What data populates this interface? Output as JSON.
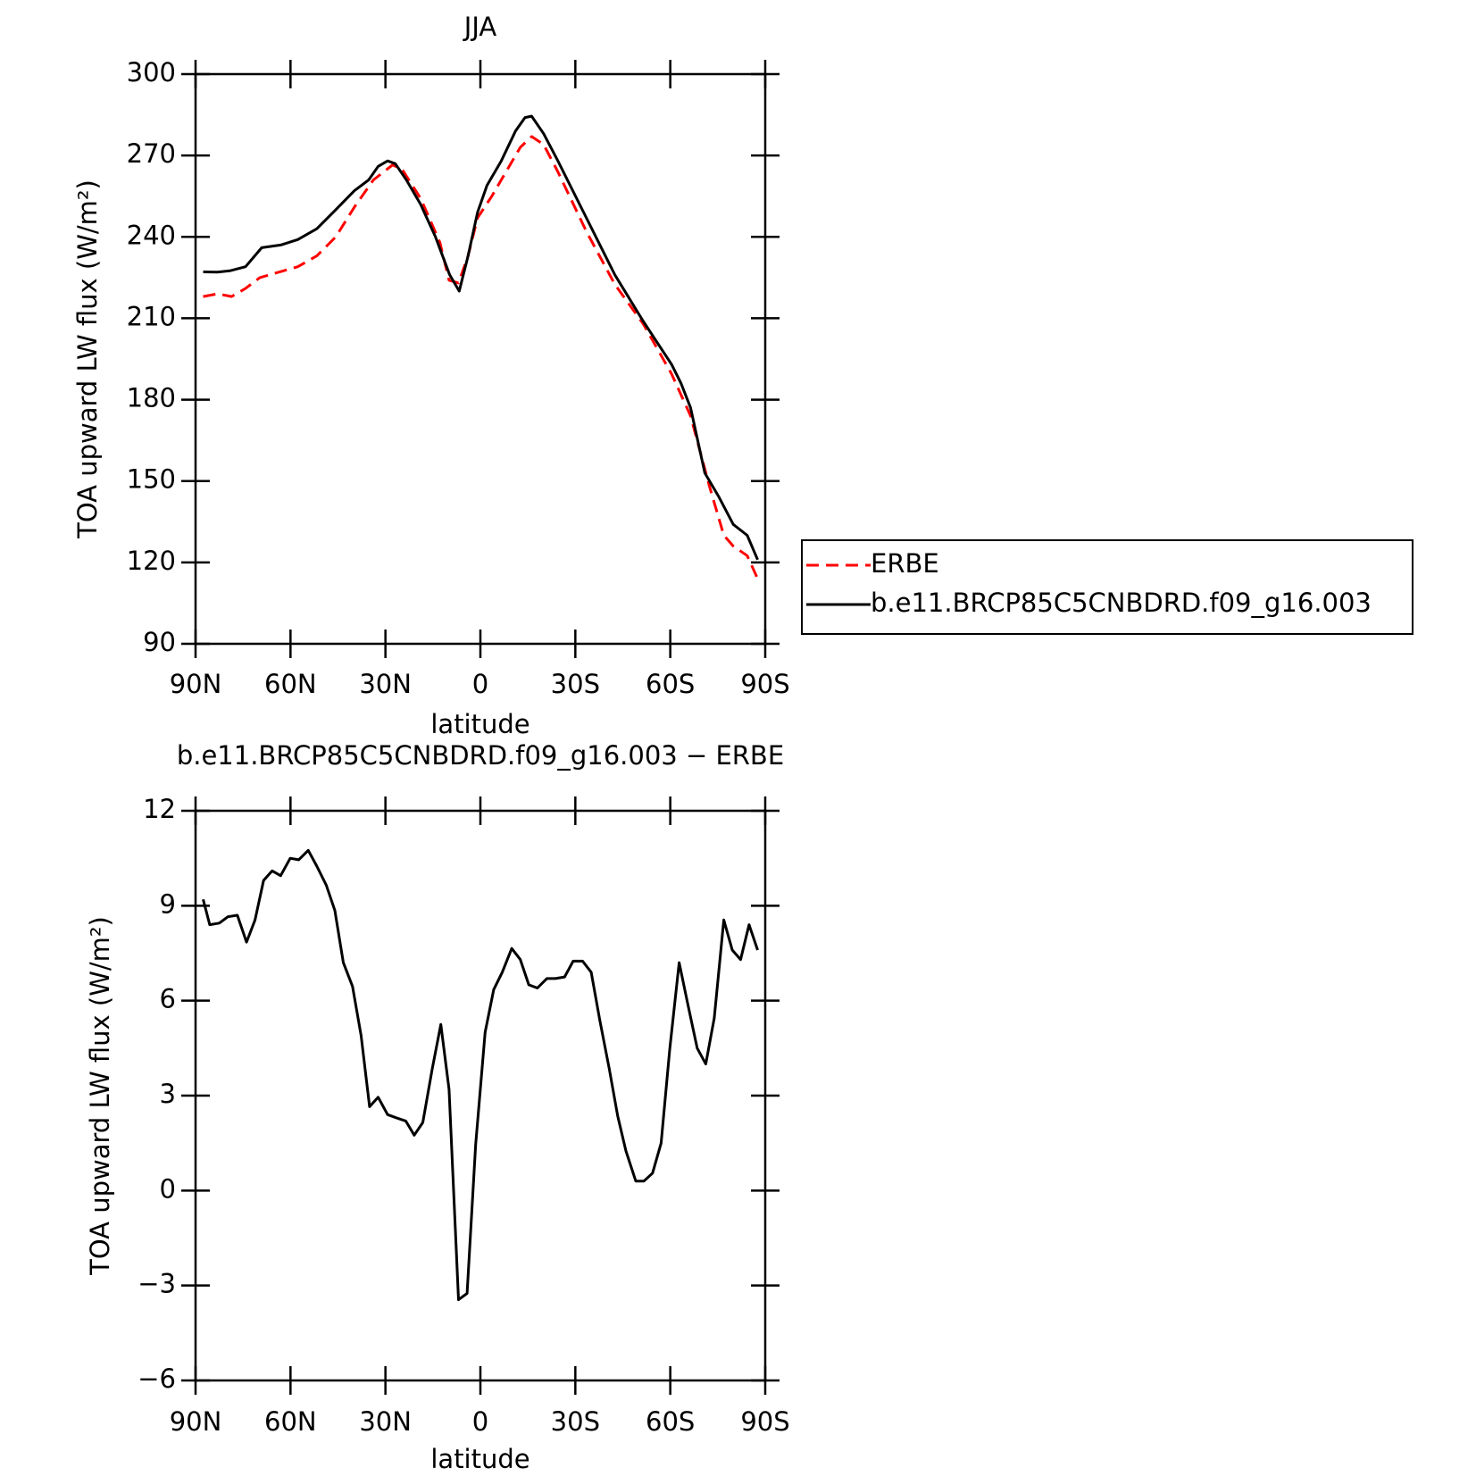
{
  "chart_data": [
    {
      "type": "line",
      "title": "JJA",
      "xlabel": "latitude",
      "ylabel": "TOA upward LW flux (W/m²)",
      "xlim": [
        90,
        -90
      ],
      "xticks": [
        {
          "value": 90,
          "label": "90N"
        },
        {
          "value": 60,
          "label": "60N"
        },
        {
          "value": 30,
          "label": "30N"
        },
        0,
        {
          "value": -30,
          "label": "30S"
        },
        {
          "value": -60,
          "label": "60S"
        },
        {
          "value": -90,
          "label": "90S"
        }
      ],
      "ylim": [
        90,
        300
      ],
      "yticks": [
        90,
        120,
        150,
        180,
        210,
        240,
        270,
        300
      ],
      "legend": "right",
      "series": [
        {
          "name": "ERBE",
          "color": "#ff0000",
          "dash": true,
          "x": [
            87.6,
            83.1,
            78.6,
            74.2,
            69.7,
            63.7,
            57.7,
            51.7,
            45.7,
            39.8,
            33.8,
            27.8,
            24.8,
            18.8,
            12.8,
            9.9,
            6.9,
            3.9,
            0.9,
            -3.6,
            -8.1,
            -12.6,
            -16.2,
            -20.0,
            -24.5,
            -33.5,
            -42.5,
            -51.4,
            -60.4,
            -66.4,
            -72.4,
            -76.9,
            -79.9,
            -84.3,
            -87.6
          ],
          "values": [
            218,
            219,
            218,
            221,
            225,
            227,
            229,
            233,
            240,
            251,
            261,
            266.5,
            265,
            254,
            238,
            224,
            223,
            233,
            247,
            255,
            264,
            273,
            277,
            274,
            264,
            242,
            222.5,
            208,
            189.5,
            174,
            148,
            130,
            126,
            122.5,
            114
          ]
        },
        {
          "name": "b.e11.BRCP85C5CNBDRD.f09_g16.003",
          "color": "#000000",
          "dash": false,
          "x": [
            87.6,
            83.1,
            79.2,
            74.2,
            69.1,
            63.1,
            57.7,
            51.7,
            45.7,
            39.8,
            35.3,
            32.3,
            29.3,
            26.9,
            23.4,
            18.9,
            14.2,
            9.7,
            6.7,
            3.9,
            0.9,
            -2.1,
            -6.6,
            -11.1,
            -14.1,
            -16.2,
            -20.0,
            -24.5,
            -33.5,
            -42.5,
            -51.4,
            -60.4,
            -63.4,
            -66.4,
            -70.9,
            -75.4,
            -79.9,
            -84.3,
            -87.6
          ],
          "values": [
            227.1,
            227,
            227.5,
            229,
            236,
            237,
            239,
            243,
            250,
            257,
            261,
            266,
            268,
            267,
            261,
            252,
            240,
            226,
            220,
            233,
            249,
            259,
            268,
            279,
            284,
            284.5,
            278,
            268,
            247,
            226,
            209,
            193,
            186,
            177,
            153,
            144,
            134,
            130,
            121
          ]
        }
      ]
    },
    {
      "type": "line",
      "title": "b.e11.BRCP85C5CNBDRD.f09_g16.003 − ERBE",
      "xlabel": "latitude",
      "ylabel": "TOA upward LW flux (W/m²)",
      "xlim": [
        90,
        -90
      ],
      "xticks": [
        {
          "value": 90,
          "label": "90N"
        },
        {
          "value": 60,
          "label": "60N"
        },
        {
          "value": 30,
          "label": "30N"
        },
        0,
        {
          "value": -30,
          "label": "30S"
        },
        {
          "value": -60,
          "label": "60S"
        },
        {
          "value": -90,
          "label": "90S"
        }
      ],
      "ylim": [
        -6,
        12
      ],
      "yticks": [
        {
          "value": -6,
          "label": "−6"
        },
        {
          "value": -3,
          "label": "−3"
        },
        0,
        3,
        6,
        9,
        12
      ],
      "series": [
        {
          "color": "#000000",
          "dash": false,
          "x": [
            87.6,
            85.5,
            82.5,
            79.8,
            76.8,
            73.9,
            71.2,
            68.5,
            65.8,
            63.1,
            60.1,
            57.4,
            54.4,
            51.7,
            48.7,
            46.0,
            43.3,
            40.4,
            37.7,
            35.0,
            32.3,
            29.3,
            26.6,
            23.6,
            20.9,
            18.2,
            15.2,
            12.5,
            9.9,
            6.9,
            4.2,
            1.5,
            -1.5,
            -4.2,
            -6.9,
            -9.9,
            -12.6,
            -15.3,
            -18.0,
            -21.0,
            -23.7,
            -26.6,
            -29.3,
            -32.3,
            -35.0,
            -37.7,
            -40.7,
            -43.4,
            -46.0,
            -49.1,
            -51.7,
            -54.4,
            -57.1,
            -59.8,
            -62.8,
            -65.5,
            -68.5,
            -71.2,
            -73.9,
            -76.9,
            -79.6,
            -82.2,
            -84.9,
            -87.6
          ],
          "values": [
            9.2,
            8.4,
            8.45,
            8.65,
            8.7,
            7.85,
            8.55,
            9.8,
            10.1,
            9.95,
            10.5,
            10.45,
            10.75,
            10.25,
            9.65,
            8.85,
            7.2,
            6.45,
            4.9,
            2.65,
            2.95,
            2.4,
            2.3,
            2.2,
            1.75,
            2.15,
            3.85,
            5.25,
            3.2,
            -3.45,
            -3.25,
            1.45,
            5.0,
            6.35,
            6.9,
            7.65,
            7.3,
            6.5,
            6.4,
            6.7,
            6.7,
            6.75,
            7.25,
            7.25,
            6.9,
            5.4,
            3.85,
            2.35,
            1.25,
            0.3,
            0.3,
            0.55,
            1.5,
            4.45,
            7.2,
            5.9,
            4.5,
            4.0,
            5.45,
            8.55,
            7.6,
            7.3,
            8.4,
            7.6
          ]
        }
      ]
    }
  ]
}
